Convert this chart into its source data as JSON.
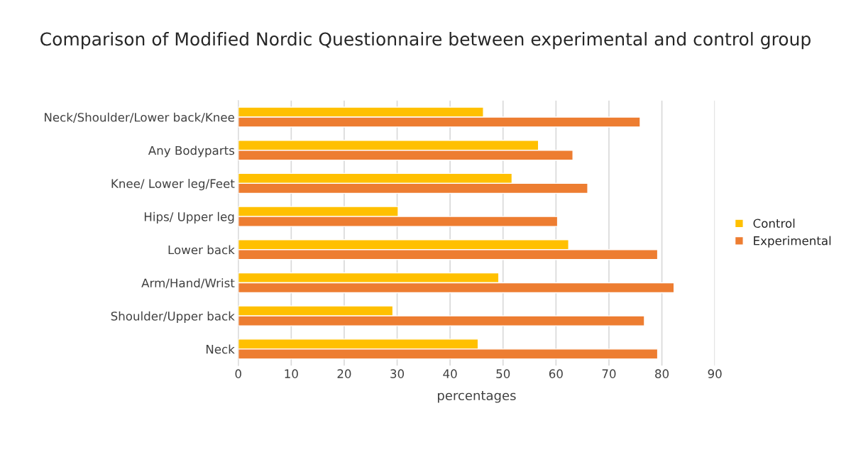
{
  "chart_data": {
    "type": "bar",
    "orientation": "horizontal",
    "title": "Comparison of Modified Nordic Questionnaire between experimental and control group",
    "xlabel": "percentages",
    "categories": [
      "Neck/Shoulder/Lower back/Knee",
      "Any Bodyparts",
      "Knee/ Lower leg/Feet",
      "Hips/ Upper leg",
      "Lower back",
      "Arm/Hand/Wrist",
      "Shoulder/Upper back",
      "Neck"
    ],
    "series": [
      {
        "name": "Control",
        "color": "#ffc000",
        "values": [
          46.3,
          56.7,
          51.7,
          30.2,
          62.4,
          49.2,
          29.2,
          45.3
        ]
      },
      {
        "name": "Experimental",
        "color": "#ed7d31",
        "values": [
          75.9,
          63.2,
          66.0,
          60.3,
          79.2,
          82.3,
          76.7,
          79.2
        ]
      }
    ],
    "xlim": [
      0,
      90
    ],
    "xticks": [
      0,
      10,
      20,
      30,
      40,
      50,
      60,
      70,
      80,
      90
    ],
    "grid": "x",
    "legend": "right"
  }
}
